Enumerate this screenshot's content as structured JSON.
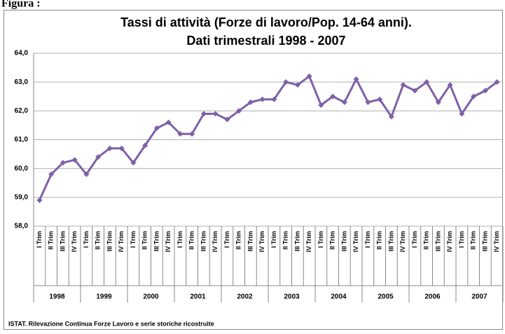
{
  "chart_data": {
    "type": "line",
    "figure_label": "Figura :",
    "title": "Tassi di attività  (Forze di lavoro/Pop. 14-64 anni).",
    "subtitle": "Dati trimestrali 1998 - 2007",
    "source": "ISTAT. Rilevazione Continua Forze Lavoro e  serie  storiche ricostruite",
    "categories": [
      "I Trim",
      "II Trim",
      "III Trim",
      "IV Trim",
      "I Trim",
      "II Trim",
      "III Trim",
      "IV Trim",
      "I Trim",
      "II Trim",
      "III Trim",
      "IV Trim",
      "I Trim",
      "II Trim",
      "III Trim",
      "IV Trim",
      "I Trim",
      "II Trim",
      "III Trim",
      "IV Trim",
      "I Trim",
      "II Trim",
      "III Trim",
      "IV Trim",
      "I Trim",
      "II Trim",
      "III Trim",
      "IV Trim",
      "I Trim",
      "II Trim",
      "III Trim",
      "IV Trim",
      "I Trim",
      "II Trim",
      "III Trim",
      "IV Trim",
      "I Trim",
      "II Trim",
      "III Trim",
      "IV Trim"
    ],
    "years": [
      "1998",
      "1999",
      "2000",
      "2001",
      "2002",
      "2003",
      "2004",
      "2005",
      "2006",
      "2007"
    ],
    "values": [
      58.9,
      59.8,
      60.2,
      60.3,
      59.8,
      60.4,
      60.7,
      60.7,
      60.2,
      60.8,
      61.4,
      61.6,
      61.2,
      61.2,
      61.9,
      61.9,
      61.7,
      62.0,
      62.3,
      62.4,
      62.4,
      63.0,
      62.9,
      63.2,
      62.2,
      62.5,
      62.3,
      63.1,
      62.3,
      62.4,
      61.8,
      62.9,
      62.7,
      63.0,
      62.3,
      62.9,
      61.9,
      62.5,
      62.7,
      63.0
    ],
    "color": "#7f60a8",
    "ylim": [
      58,
      64
    ],
    "yticks": [
      {
        "value": 58,
        "label": "58,0"
      },
      {
        "value": 59,
        "label": "59,0"
      },
      {
        "value": 60,
        "label": "60,0"
      },
      {
        "value": 61,
        "label": "61,0"
      },
      {
        "value": 62,
        "label": "62,0"
      },
      {
        "value": 63,
        "label": "63,0"
      },
      {
        "value": 64,
        "label": "64,0"
      }
    ],
    "grid": true
  }
}
